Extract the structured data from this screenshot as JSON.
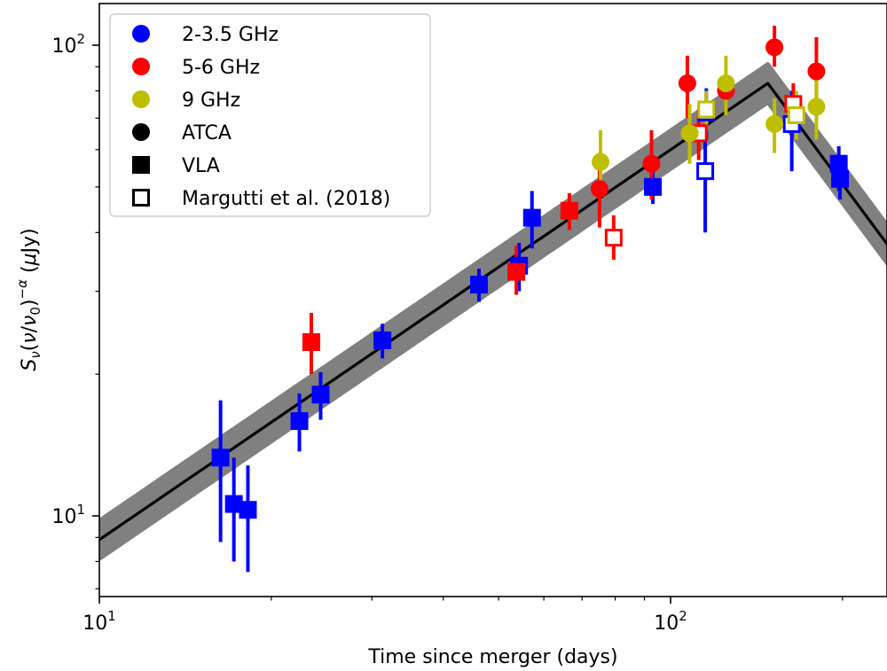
{
  "chart_data": {
    "type": "scatter",
    "title": "",
    "xlabel": "Time since merger (days)",
    "ylabel": "S_ν(ν/ν_0)^{−α} (μJy)",
    "xscale": "log",
    "yscale": "log",
    "xlim": [
      10,
      260
    ],
    "ylim": [
      7.0,
      115
    ],
    "x_ticks": [
      {
        "base": "10",
        "exp": "1",
        "value": 10
      },
      {
        "base": "10",
        "exp": "2",
        "value": 100
      }
    ],
    "y_ticks": [
      {
        "base": "10",
        "exp": "1",
        "value": 10
      },
      {
        "base": "10",
        "exp": "2",
        "value": 100
      }
    ],
    "grid": false,
    "legend_position": "top-left",
    "legend": [
      {
        "label": "2-3.5 GHz",
        "marker": "circle",
        "color": "#0000ff",
        "filled": true
      },
      {
        "label": "5-6 GHz",
        "marker": "circle",
        "color": "#ff0000",
        "filled": true
      },
      {
        "label": "9 GHz",
        "marker": "circle",
        "color": "#bfbf00",
        "filled": true
      },
      {
        "label": "ATCA",
        "marker": "circle",
        "color": "#000000",
        "filled": true
      },
      {
        "label": "VLA",
        "marker": "square",
        "color": "#000000",
        "filled": true
      },
      {
        "label": "Margutti et al. (2018)",
        "marker": "square",
        "color": "#000000",
        "filled": false
      }
    ],
    "model": {
      "line_color": "#000000",
      "band_color": "#808080",
      "points": [
        {
          "x": 10,
          "y": 8.9
        },
        {
          "x": 148,
          "y": 83
        },
        {
          "x": 260,
          "y": 33
        }
      ],
      "band_factor": 1.1
    },
    "series": [
      {
        "name": "2-3.5 GHz",
        "color": "#0000ff",
        "points": [
          {
            "x": 16.3,
            "y": 13.3,
            "ylo": 8.8,
            "yhi": 17.6,
            "inst": "VLA",
            "filled": true
          },
          {
            "x": 17.2,
            "y": 10.6,
            "ylo": 8.0,
            "yhi": 13.3,
            "inst": "VLA",
            "filled": true
          },
          {
            "x": 18.2,
            "y": 10.3,
            "ylo": 7.6,
            "yhi": 12.8,
            "inst": "VLA",
            "filled": true
          },
          {
            "x": 22.4,
            "y": 15.9,
            "ylo": 13.7,
            "yhi": 18.2,
            "inst": "VLA",
            "filled": true
          },
          {
            "x": 24.4,
            "y": 18.1,
            "ylo": 16.0,
            "yhi": 20.2,
            "inst": "VLA",
            "filled": true
          },
          {
            "x": 31.3,
            "y": 23.6,
            "ylo": 21.6,
            "yhi": 25.6,
            "inst": "VLA",
            "filled": true
          },
          {
            "x": 46.2,
            "y": 31.0,
            "ylo": 28.5,
            "yhi": 33.5,
            "inst": "VLA",
            "filled": true
          },
          {
            "x": 54.3,
            "y": 34.0,
            "ylo": 30.0,
            "yhi": 38.0,
            "inst": "VLA",
            "filled": true
          },
          {
            "x": 57.2,
            "y": 43.0,
            "ylo": 37.0,
            "yhi": 49.0,
            "inst": "VLA",
            "filled": true
          },
          {
            "x": 93.1,
            "y": 50.0,
            "ylo": 46.0,
            "yhi": 54.0,
            "inst": "VLA",
            "filled": true
          },
          {
            "x": 115.0,
            "y": 54.0,
            "ylo": 40.0,
            "yhi": 68.0,
            "inst": "Margutti et al. (2018)",
            "filled": false
          },
          {
            "x": 115.5,
            "y": 72.0,
            "ylo": 63.0,
            "yhi": 81.0,
            "inst": "Margutti et al. (2018)",
            "filled": false
          },
          {
            "x": 163.0,
            "y": 68.0,
            "ylo": 54.0,
            "yhi": 80.0,
            "inst": "Margutti et al. (2018)",
            "filled": false
          },
          {
            "x": 197.0,
            "y": 56.0,
            "ylo": 49.0,
            "yhi": 61.0,
            "inst": "VLA",
            "filled": true
          },
          {
            "x": 198.0,
            "y": 52.0,
            "ylo": 47.0,
            "yhi": 57.0,
            "inst": "VLA",
            "filled": true
          }
        ]
      },
      {
        "name": "5-6 GHz",
        "color": "#ff0000",
        "points": [
          {
            "x": 23.5,
            "y": 23.4,
            "ylo": 20.0,
            "yhi": 27.0,
            "inst": "VLA",
            "filled": true
          },
          {
            "x": 53.7,
            "y": 33.0,
            "ylo": 29.5,
            "yhi": 37.5,
            "inst": "VLA",
            "filled": true
          },
          {
            "x": 66.5,
            "y": 44.5,
            "ylo": 40.5,
            "yhi": 48.5,
            "inst": "VLA",
            "filled": true
          },
          {
            "x": 75.1,
            "y": 49.5,
            "ylo": 41.0,
            "yhi": 59.0,
            "inst": "ATCA",
            "filled": true
          },
          {
            "x": 79.5,
            "y": 39.0,
            "ylo": 35.0,
            "yhi": 43.5,
            "inst": "Margutti et al. (2018)",
            "filled": false
          },
          {
            "x": 92.6,
            "y": 56.0,
            "ylo": 47.0,
            "yhi": 66.0,
            "inst": "ATCA",
            "filled": true
          },
          {
            "x": 107.0,
            "y": 83.0,
            "ylo": 70.0,
            "yhi": 95.0,
            "inst": "ATCA",
            "filled": true
          },
          {
            "x": 112.0,
            "y": 65.0,
            "ylo": 57.0,
            "yhi": 73.0,
            "inst": "Margutti et al. (2018)",
            "filled": false
          },
          {
            "x": 125.0,
            "y": 80.0,
            "ylo": 73.0,
            "yhi": 87.0,
            "inst": "ATCA",
            "filled": true
          },
          {
            "x": 152.0,
            "y": 99.0,
            "ylo": 90.0,
            "yhi": 110.0,
            "inst": "ATCA",
            "filled": true
          },
          {
            "x": 164.0,
            "y": 75.0,
            "ylo": 65.0,
            "yhi": 83.0,
            "inst": "Margutti et al. (2018)",
            "filled": false
          },
          {
            "x": 180.0,
            "y": 88.0,
            "ylo": 76.0,
            "yhi": 104.0,
            "inst": "ATCA",
            "filled": true
          }
        ]
      },
      {
        "name": "9 GHz",
        "color": "#bfbf00",
        "points": [
          {
            "x": 75.4,
            "y": 56.5,
            "ylo": 49.0,
            "yhi": 66.0,
            "inst": "ATCA",
            "filled": true
          },
          {
            "x": 108.0,
            "y": 65.0,
            "ylo": 56.0,
            "yhi": 75.0,
            "inst": "ATCA",
            "filled": true
          },
          {
            "x": 115.5,
            "y": 73.0,
            "ylo": 66.0,
            "yhi": 80.0,
            "inst": "Margutti et al. (2018)",
            "filled": false
          },
          {
            "x": 125.0,
            "y": 83.0,
            "ylo": 71.0,
            "yhi": 95.0,
            "inst": "ATCA",
            "filled": true
          },
          {
            "x": 152.0,
            "y": 68.0,
            "ylo": 59.0,
            "yhi": 77.0,
            "inst": "ATCA",
            "filled": true
          },
          {
            "x": 166.0,
            "y": 71.0,
            "ylo": 63.0,
            "yhi": 80.0,
            "inst": "Margutti et al. (2018)",
            "filled": false
          },
          {
            "x": 180.0,
            "y": 74.0,
            "ylo": 63.0,
            "yhi": 86.0,
            "inst": "ATCA",
            "filled": true
          }
        ]
      }
    ]
  }
}
